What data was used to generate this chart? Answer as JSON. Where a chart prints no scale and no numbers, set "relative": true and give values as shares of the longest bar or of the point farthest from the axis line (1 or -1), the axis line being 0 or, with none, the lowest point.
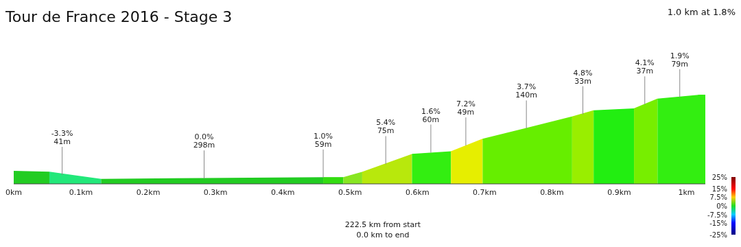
{
  "chart_data": {
    "type": "area",
    "title": "Tour de France 2016 - Stage 3",
    "relative": true,
    "xlim": [
      0,
      1.028
    ],
    "xticks": [
      {
        "value": 0,
        "label": "0km"
      },
      {
        "value": 0.1,
        "label": "0.1km"
      },
      {
        "value": 0.2,
        "label": "0.2km"
      },
      {
        "value": 0.3,
        "label": "0.3km"
      },
      {
        "value": 0.4,
        "label": "0.4km"
      },
      {
        "value": 0.5,
        "label": "0.5km"
      },
      {
        "value": 0.6,
        "label": "0.6km"
      },
      {
        "value": 0.7,
        "label": "0.7km"
      },
      {
        "value": 0.8,
        "label": "0.8km"
      },
      {
        "value": 0.9,
        "label": "0.9km"
      },
      {
        "value": 1,
        "label": "1km"
      }
    ],
    "series": [
      {
        "color": "#22cc22",
        "x": [
          0,
          0.053
        ],
        "values": [
          0.14,
          0.13
        ]
      },
      {
        "color": "#22e87a",
        "x": [
          0.053,
          0.13
        ],
        "values": [
          0.13,
          0.05
        ]
      },
      {
        "color": "#22cc22",
        "x": [
          0.13,
          0.28,
          0.46
        ],
        "values": [
          0.05,
          0.06,
          0.07
        ]
      },
      {
        "color": "#33dd11",
        "x": [
          0.46,
          0.49
        ],
        "values": [
          0.07,
          0.07
        ]
      },
      {
        "color": "#88e622",
        "x": [
          0.49,
          0.518
        ],
        "values": [
          0.07,
          0.13
        ]
      },
      {
        "color": "#b8e80c",
        "x": [
          0.518,
          0.592
        ],
        "values": [
          0.13,
          0.33
        ]
      },
      {
        "color": "#33ee11",
        "x": [
          0.592,
          0.65
        ],
        "values": [
          0.33,
          0.36
        ]
      },
      {
        "color": "#e6ee00",
        "x": [
          0.65,
          0.697
        ],
        "values": [
          0.36,
          0.5
        ]
      },
      {
        "color": "#66ee00",
        "x": [
          0.697,
          0.83
        ],
        "values": [
          0.5,
          0.75
        ]
      },
      {
        "color": "#99ee00",
        "x": [
          0.83,
          0.862
        ],
        "values": [
          0.75,
          0.82
        ]
      },
      {
        "color": "#22ee11",
        "x": [
          0.862,
          0.922
        ],
        "values": [
          0.82,
          0.84
        ]
      },
      {
        "color": "#77ee00",
        "x": [
          0.922,
          0.957
        ],
        "values": [
          0.84,
          0.95
        ]
      },
      {
        "color": "#33ee11",
        "x": [
          0.957,
          1.028
        ],
        "values": [
          0.95,
          1
        ]
      }
    ],
    "annotations": [
      "1.0 km at 1.8%",
      "222.5 km from start",
      "0.0 km to end",
      {
        "text": "-3.3%\n41m",
        "x": 0.072,
        "y": 0.1
      },
      {
        "text": "0.0%\n298m",
        "x": 0.283,
        "y": 0.06
      },
      {
        "text": "1.0%\n59m",
        "x": 0.46,
        "y": 0.07
      },
      {
        "text": "5.4%\n75m",
        "x": 0.553,
        "y": 0.22
      },
      {
        "text": "1.6%\n60m",
        "x": 0.62,
        "y": 0.35
      },
      {
        "text": "7.2%\n49m",
        "x": 0.672,
        "y": 0.43
      },
      {
        "text": "3.7%\n140m",
        "x": 0.762,
        "y": 0.62
      },
      {
        "text": "4.8%\n33m",
        "x": 0.846,
        "y": 0.78
      },
      {
        "text": "4.1%\n37m",
        "x": 0.938,
        "y": 0.89
      },
      {
        "text": "1.9%\n79m",
        "x": 0.99,
        "y": 0.97
      }
    ],
    "clim": [
      -25,
      25
    ],
    "cticks": [
      {
        "value": 25,
        "label": "25%"
      },
      {
        "value": 15,
        "label": "15%"
      },
      {
        "value": 7.5,
        "label": "7.5%"
      },
      {
        "value": 0,
        "label": "0%"
      },
      {
        "value": -7.5,
        "label": "-7.5%"
      },
      {
        "value": -15,
        "label": "-15%"
      },
      {
        "value": -25,
        "label": "-25%"
      }
    ]
  }
}
